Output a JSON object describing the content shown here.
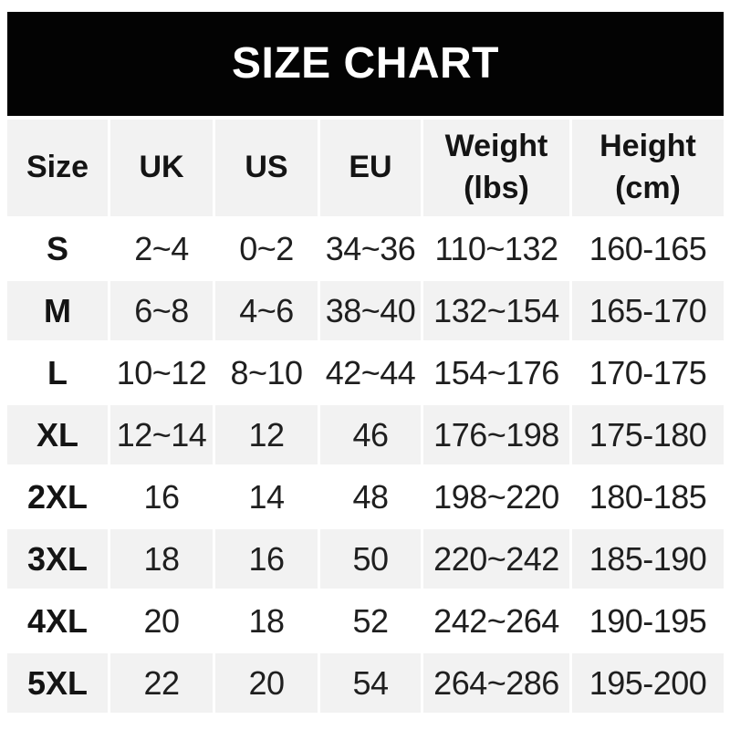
{
  "title": "SIZE CHART",
  "chart_data": {
    "type": "table",
    "title": "SIZE CHART",
    "columns": [
      "Size",
      "UK",
      "US",
      "EU",
      "Weight\n(lbs)",
      "Height\n(cm)"
    ],
    "rows": [
      [
        "S",
        "2~4",
        "0~2",
        "34~36",
        "110~132",
        "160-165"
      ],
      [
        "M",
        "6~8",
        "4~6",
        "38~40",
        "132~154",
        "165-170"
      ],
      [
        "L",
        "10~12",
        "8~10",
        "42~44",
        "154~176",
        "170-175"
      ],
      [
        "XL",
        "12~14",
        "12",
        "46",
        "176~198",
        "175-180"
      ],
      [
        "2XL",
        "16",
        "14",
        "48",
        "198~220",
        "180-185"
      ],
      [
        "3XL",
        "18",
        "16",
        "50",
        "220~242",
        "185-190"
      ],
      [
        "4XL",
        "20",
        "18",
        "52",
        "242~264",
        "190-195"
      ],
      [
        "5XL",
        "22",
        "20",
        "54",
        "264~286",
        "195-200"
      ]
    ],
    "layout": {
      "banner_background": "#030303",
      "banner_text_color": "#ffffff",
      "cell_background_gray": "#f2f2f2",
      "cell_background_white": "#ffffff",
      "text_color": "#1f1f1f",
      "zebra_gray_rows": "header, M, XL, 3XL, 5XL"
    }
  }
}
